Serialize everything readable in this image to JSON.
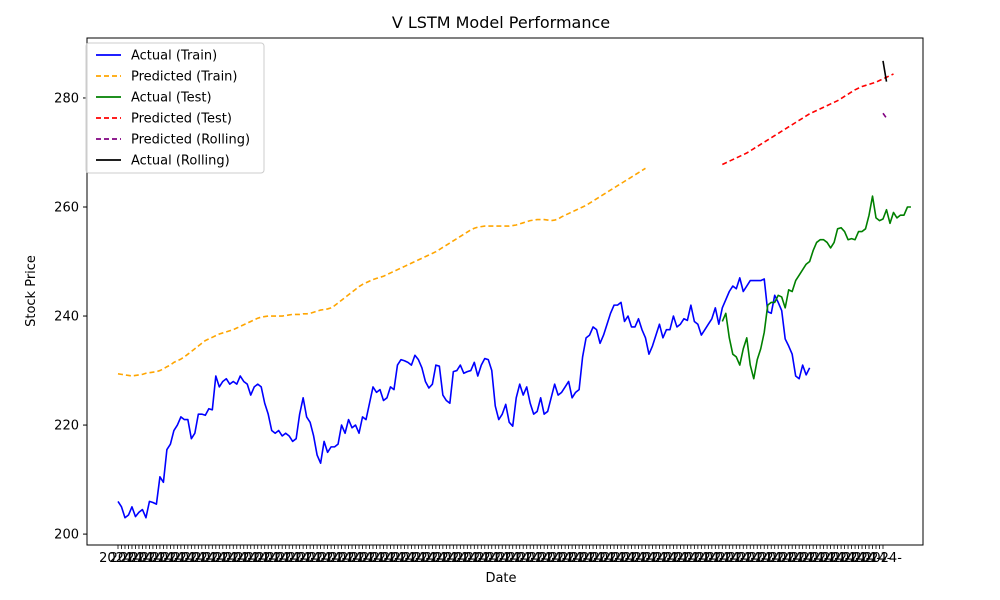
{
  "chart_data": {
    "type": "line",
    "title": "V LSTM Model Performance",
    "xlabel": "Date",
    "ylabel": "Stock Price",
    "ylim": [
      198,
      291
    ],
    "yticks": [
      200,
      220,
      240,
      260,
      280
    ],
    "grid": false,
    "legend_position": "top-left",
    "x_total_points": 220,
    "x_tick_label_text": "2024-",
    "series": [
      {
        "name": "Actual (Train)",
        "color": "#0000ff",
        "dash": "solid",
        "x_start": 0,
        "values": [
          206.0,
          205.0,
          203.0,
          203.5,
          205.0,
          203.2,
          204.0,
          204.5,
          203.0,
          206.0,
          205.8,
          205.5,
          210.5,
          209.5,
          215.5,
          216.5,
          219.0,
          220.0,
          221.5,
          221.0,
          221.0,
          217.5,
          218.5,
          222.0,
          222.0,
          221.8,
          223.0,
          222.8,
          229.0,
          227.0,
          228.0,
          228.5,
          227.5,
          228.0,
          227.5,
          229.0,
          228.0,
          227.5,
          225.5,
          227.0,
          227.5,
          227.0,
          224.0,
          222.0,
          219.0,
          218.5,
          219.0,
          218.0,
          218.5,
          218.0,
          217.0,
          217.5,
          222.0,
          225.0,
          221.5,
          220.5,
          218.0,
          214.5,
          213.0,
          217.0,
          215.0,
          216.0,
          216.0,
          216.5,
          220.0,
          218.5,
          221.0,
          219.5,
          220.0,
          218.5,
          221.5,
          221.0,
          224.0,
          227.0,
          226.0,
          226.5,
          224.5,
          225.0,
          227.0,
          226.5,
          231.0,
          232.0,
          231.8,
          231.5,
          231.0,
          232.8,
          232.0,
          230.5,
          228.0,
          226.8,
          227.5,
          231.0,
          230.8,
          225.5,
          224.5,
          224.0,
          229.8,
          230.0,
          231.0,
          229.5,
          229.8,
          230.0,
          231.5,
          229.0,
          231.0,
          232.2,
          232.0,
          230.0,
          223.5,
          221.0,
          222.0,
          223.8,
          220.5,
          219.8,
          225.0,
          227.5,
          225.5,
          227.0,
          224.0,
          222.0,
          222.5,
          225.0,
          222.0,
          222.5,
          225.0,
          227.5,
          225.5,
          226.0,
          227.0,
          228.0,
          225.0,
          226.0,
          226.5,
          232.5,
          236.0,
          236.5,
          238.0,
          237.5,
          235.0,
          236.5,
          238.5,
          240.5,
          242.0,
          242.0,
          242.5,
          239.0,
          240.0,
          238.0,
          238.0,
          239.5,
          237.5,
          236.0,
          233.0,
          234.5,
          236.5,
          238.5,
          236.0,
          237.5,
          237.5,
          240.0,
          238.0,
          238.5,
          239.5,
          239.2,
          242.0,
          239.0,
          238.5,
          236.5,
          237.5,
          238.5,
          239.5,
          241.5,
          238.5,
          241.5,
          243.0,
          244.5,
          245.5,
          245.0,
          247.0,
          244.5,
          245.5,
          246.5,
          246.5,
          246.5,
          246.5,
          246.8,
          240.8,
          240.5,
          243.8,
          242.5,
          241.0,
          235.8,
          234.5,
          233.0,
          229.0,
          228.5,
          231.0,
          229.2,
          230.5
        ]
      },
      {
        "name": "Predicted (Train)",
        "color": "#ffa500",
        "dash": "dashed",
        "x_start": 0,
        "values": [
          229.4,
          229.3,
          229.2,
          229.1,
          229.0,
          229.1,
          229.2,
          229.3,
          229.5,
          229.6,
          229.7,
          229.8,
          230.0,
          230.3,
          230.7,
          231.0,
          231.5,
          231.8,
          232.1,
          232.5,
          233.0,
          233.5,
          234.0,
          234.5,
          235.0,
          235.5,
          235.8,
          236.1,
          236.4,
          236.7,
          236.9,
          237.1,
          237.3,
          237.5,
          237.8,
          238.1,
          238.4,
          238.7,
          239.0,
          239.3,
          239.6,
          239.8,
          239.9,
          240.0,
          240.0,
          240.0,
          240.0,
          240.0,
          240.1,
          240.2,
          240.3,
          240.3,
          240.3,
          240.4,
          240.4,
          240.5,
          240.7,
          240.9,
          241.1,
          241.2,
          241.3,
          241.5,
          241.9,
          242.4,
          242.9,
          243.4,
          243.9,
          244.4,
          244.9,
          245.4,
          245.8,
          246.1,
          246.4,
          246.7,
          246.9,
          247.1,
          247.3,
          247.6,
          247.9,
          248.2,
          248.5,
          248.8,
          249.1,
          249.4,
          249.7,
          250.0,
          250.3,
          250.6,
          250.9,
          251.2,
          251.5,
          251.8,
          252.2,
          252.6,
          253.0,
          253.4,
          253.8,
          254.2,
          254.6,
          255.0,
          255.4,
          255.8,
          256.1,
          256.3,
          256.4,
          256.5,
          256.5,
          256.5,
          256.5,
          256.5,
          256.5,
          256.5,
          256.5,
          256.6,
          256.7,
          256.9,
          257.1,
          257.3,
          257.5,
          257.6,
          257.7,
          257.7,
          257.7,
          257.6,
          257.5,
          257.6,
          257.8,
          258.2,
          258.5,
          258.8,
          259.1,
          259.4,
          259.7,
          260.0,
          260.3,
          260.7,
          261.1,
          261.5,
          261.9,
          262.3,
          262.7,
          263.1,
          263.5,
          263.9,
          264.3,
          264.7,
          265.1,
          265.5,
          265.9,
          266.3,
          266.7,
          267.1
        ]
      },
      {
        "name": "Actual (Test)",
        "color": "#008000",
        "dash": "solid",
        "x_start": 173,
        "values": [
          239.0,
          240.5,
          236.0,
          233.0,
          232.5,
          231.0,
          234.0,
          236.0,
          231.0,
          228.5,
          232.0,
          234.0,
          237.0,
          242.0,
          242.5,
          242.5,
          243.8,
          243.5,
          241.5,
          244.8,
          244.5,
          246.5,
          247.5,
          248.5,
          249.5,
          250.0,
          252.0,
          253.5,
          254.0,
          254.0,
          253.5,
          252.5,
          253.5,
          256.0,
          256.2,
          255.5,
          254.0,
          254.2,
          254.0,
          255.5,
          255.5,
          256.0,
          258.5,
          262.0,
          258.0,
          257.5,
          257.8,
          259.5,
          257.0,
          259.0,
          258.0,
          258.5,
          258.5,
          260.0,
          260.0
        ]
      },
      {
        "name": "Predicted (Test)",
        "color": "#ff0000",
        "dash": "dashed",
        "x_start": 173,
        "values": [
          267.8,
          268.1,
          268.4,
          268.7,
          269.0,
          269.3,
          269.6,
          269.9,
          270.3,
          270.7,
          271.1,
          271.5,
          271.9,
          272.3,
          272.7,
          273.1,
          273.5,
          273.9,
          274.3,
          274.7,
          275.1,
          275.5,
          275.9,
          276.3,
          276.7,
          277.1,
          277.4,
          277.7,
          278.0,
          278.3,
          278.6,
          278.9,
          279.2,
          279.5,
          279.9,
          280.3,
          280.7,
          281.1,
          281.5,
          281.8,
          282.1,
          282.3,
          282.5,
          282.7,
          282.9,
          283.2,
          283.5,
          283.8,
          284.1,
          284.4
        ]
      },
      {
        "name": "Predicted (Rolling)",
        "color": "#800080",
        "dash": "dashed",
        "x_start": 219,
        "values": [
          277.2,
          276.3
        ]
      },
      {
        "name": "Actual (Rolling)",
        "color": "#000000",
        "dash": "solid",
        "x_start": 219,
        "values": [
          286.8,
          283.0
        ]
      }
    ]
  }
}
